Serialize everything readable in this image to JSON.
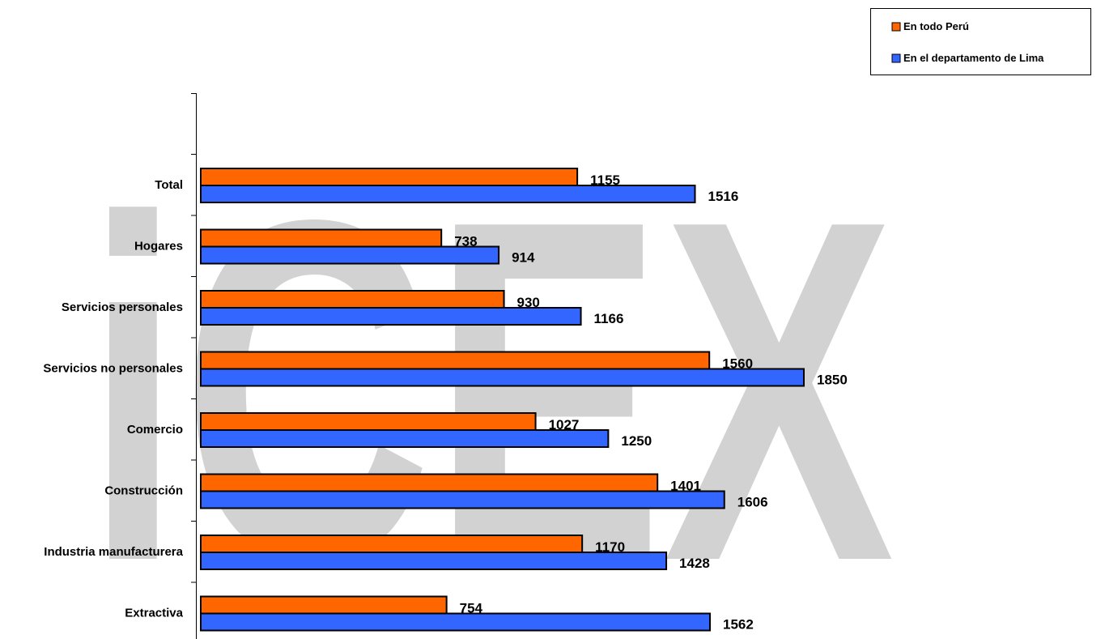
{
  "watermark": "iCEX",
  "chart_data": {
    "type": "bar",
    "orientation": "horizontal",
    "categories": [
      "Total",
      "Hogares",
      "Servicios personales",
      "Servicios no personales",
      "Comercio",
      "Construcción",
      "Industria manufacturera",
      "Extractiva"
    ],
    "series": [
      {
        "name": "En todo Perú",
        "color": "#ff6600",
        "values": [
          1155,
          738,
          930,
          1560,
          1027,
          1401,
          1170,
          754
        ]
      },
      {
        "name": "En el departamento de Lima",
        "color": "#3366ff",
        "values": [
          1516,
          914,
          1166,
          1850,
          1250,
          1606,
          1428,
          1562
        ]
      }
    ],
    "xlim": [
      0,
      1850
    ],
    "data_labels": true,
    "grid": false,
    "legend_position": "top-right"
  }
}
